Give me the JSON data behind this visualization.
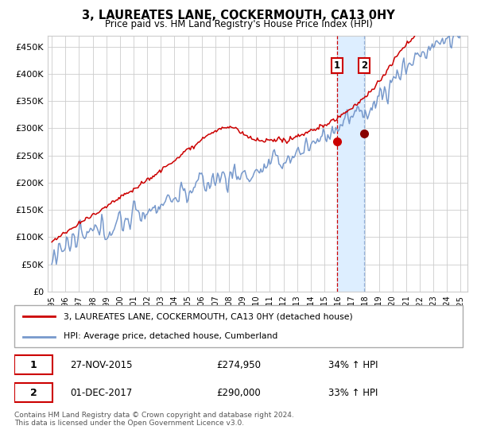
{
  "title": "3, LAUREATES LANE, COCKERMOUTH, CA13 0HY",
  "subtitle": "Price paid vs. HM Land Registry's House Price Index (HPI)",
  "ylabel_ticks": [
    "£0",
    "£50K",
    "£100K",
    "£150K",
    "£200K",
    "£250K",
    "£300K",
    "£350K",
    "£400K",
    "£450K"
  ],
  "ytick_values": [
    0,
    50000,
    100000,
    150000,
    200000,
    250000,
    300000,
    350000,
    400000,
    450000
  ],
  "ylim": [
    0,
    470000
  ],
  "xlim_start": 1994.7,
  "xlim_end": 2025.5,
  "sale1_x": 2015.91,
  "sale1_y": 274950,
  "sale2_x": 2017.92,
  "sale2_y": 290000,
  "sale1_label": "1",
  "sale2_label": "2",
  "sale1_date": "27-NOV-2015",
  "sale1_price": "£274,950",
  "sale1_hpi": "34% ↑ HPI",
  "sale2_date": "01-DEC-2017",
  "sale2_price": "£290,000",
  "sale2_hpi": "33% ↑ HPI",
  "legend_line1": "3, LAUREATES LANE, COCKERMOUTH, CA13 0HY (detached house)",
  "legend_line2": "HPI: Average price, detached house, Cumberland",
  "footer": "Contains HM Land Registry data © Crown copyright and database right 2024.\nThis data is licensed under the Open Government Licence v3.0.",
  "line_color_red": "#cc0000",
  "line_color_blue": "#7799cc",
  "highlight_fill": "#ddeeff",
  "grid_color": "#cccccc",
  "bg_color": "#ffffff"
}
